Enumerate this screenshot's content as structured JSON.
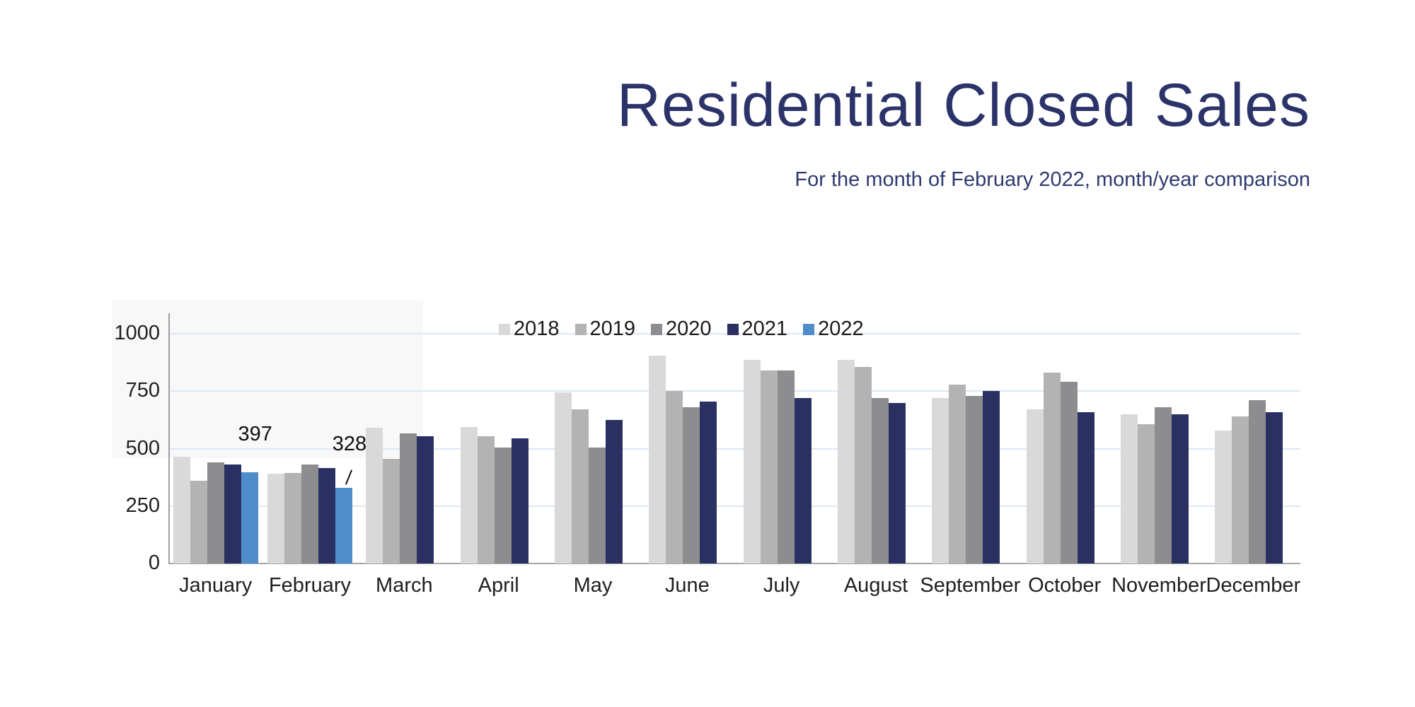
{
  "header": {
    "title": "Residential Closed Sales",
    "subtitle": "For the month of February 2022, month/year comparison"
  },
  "colors": {
    "title_navy": "#2b3369",
    "subtitle_navy": "#2e3a6e",
    "axis_text": "#1f1f1f",
    "gridline": "#dee7f3",
    "axis_line": "#a6a6a6",
    "highlight_blue": "#4e8cca",
    "highlight_navy": "#2a3162"
  },
  "chart_data": {
    "type": "bar",
    "title": "Residential Closed Sales",
    "subtitle": "For the month of February 2022, month/year comparison",
    "categories": [
      "January",
      "February",
      "March",
      "April",
      "May",
      "June",
      "July",
      "August",
      "September",
      "October",
      "November",
      "December"
    ],
    "series": [
      {
        "name": "2018",
        "color": "#d9d9d9",
        "values": [
          465,
          390,
          590,
          595,
          745,
          905,
          885,
          885,
          720,
          670,
          650,
          580
        ]
      },
      {
        "name": "2019",
        "color": "#b3b3b3",
        "values": [
          360,
          395,
          455,
          555,
          670,
          750,
          840,
          855,
          780,
          830,
          605,
          640
        ]
      },
      {
        "name": "2020",
        "color": "#8d8d8f",
        "values": [
          440,
          430,
          565,
          505,
          505,
          680,
          840,
          720,
          730,
          790,
          680,
          710
        ]
      },
      {
        "name": "2021",
        "color": "#2a3162",
        "values": [
          430,
          415,
          555,
          545,
          625,
          705,
          720,
          700,
          750,
          660,
          650,
          660
        ]
      },
      {
        "name": "2022",
        "color": "#4e8cca",
        "values": [
          397,
          328,
          null,
          null,
          null,
          null,
          null,
          null,
          null,
          null,
          null,
          null
        ]
      }
    ],
    "ylim": [
      0,
      1000
    ],
    "yticks": [
      0,
      250,
      500,
      750,
      1000
    ],
    "grid": "horizontal",
    "legend_position": "top-center",
    "annotations": [
      {
        "category": "January",
        "series": "2022",
        "text": "397",
        "leader": false
      },
      {
        "category": "February",
        "series": "2022",
        "text": "328",
        "leader": true
      }
    ]
  }
}
